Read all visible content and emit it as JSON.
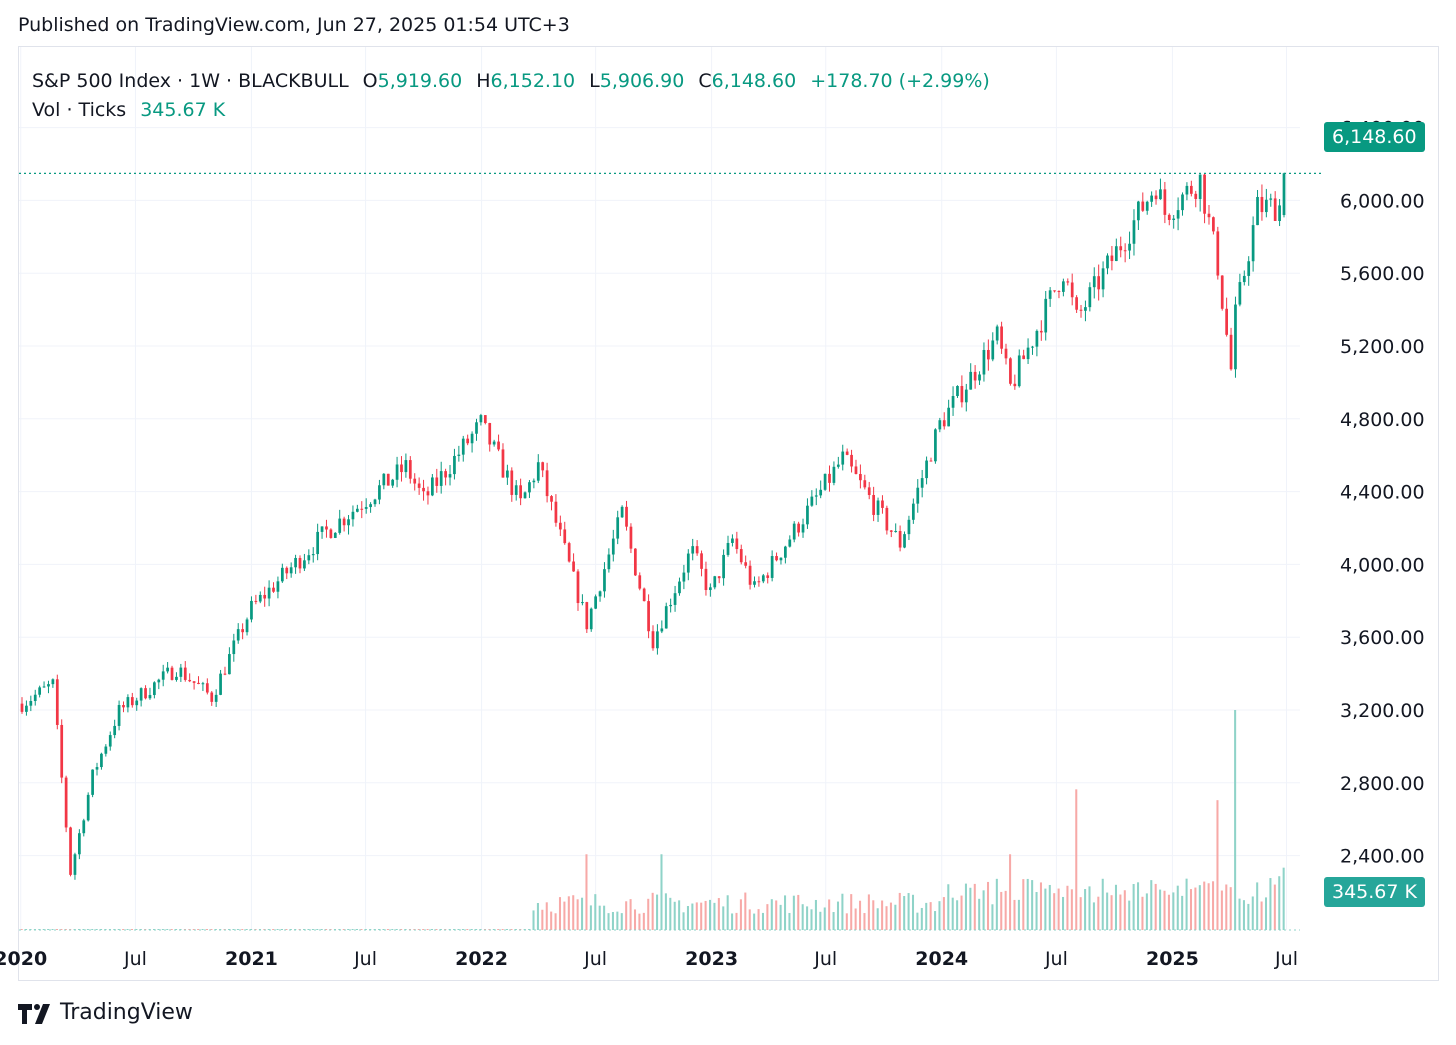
{
  "header": {
    "published": "Published on TradingView.com, Jun 27, 2025 01:54 UTC+3"
  },
  "legend": {
    "symbol": "S&P 500 Index · 1W · BLACKBULL",
    "o_label": "O",
    "o_value": "5,919.60",
    "h_label": "H",
    "h_value": "6,152.10",
    "l_label": "L",
    "l_value": "5,906.90",
    "c_label": "C",
    "c_value": "6,148.60",
    "change": "+178.70 (+2.99%)",
    "vol_label": "Vol · Ticks",
    "vol_value": "345.67 K"
  },
  "price_badge": "6,148.60",
  "volume_badge": "345.67 K",
  "footer": {
    "brand": "TradingView"
  },
  "colors": {
    "up": "#089981",
    "down": "#f23645",
    "vol_up": "#8fd3c8",
    "vol_down": "#f7a9a7",
    "grid": "#f0f3fa",
    "text": "#131722"
  },
  "chart_data": {
    "type": "candlestick",
    "interval": "1W",
    "y_axis": {
      "ticks": [
        2400,
        2800,
        3200,
        3600,
        4000,
        4400,
        4800,
        5200,
        5600,
        6000,
        6400
      ],
      "tick_labels": [
        "2,400.00",
        "2,800.00",
        "3,200.00",
        "3,600.00",
        "4,000.00",
        "4,400.00",
        "4,800.00",
        "5,200.00",
        "5,600.00",
        "6,000.00",
        "6,400.00"
      ],
      "range": [
        1800,
        6600
      ]
    },
    "x_axis": {
      "start": "2020-01-03",
      "end": "2025-06-27",
      "ticks": [
        {
          "date": "2020-01-01",
          "label": "2020",
          "bold": true
        },
        {
          "date": "2020-07-01",
          "label": "Jul",
          "bold": false
        },
        {
          "date": "2021-01-01",
          "label": "2021",
          "bold": true
        },
        {
          "date": "2021-07-01",
          "label": "Jul",
          "bold": false
        },
        {
          "date": "2022-01-01",
          "label": "2022",
          "bold": true
        },
        {
          "date": "2022-07-01",
          "label": "Jul",
          "bold": false
        },
        {
          "date": "2023-01-01",
          "label": "2023",
          "bold": true
        },
        {
          "date": "2023-07-01",
          "label": "Jul",
          "bold": false
        },
        {
          "date": "2024-01-01",
          "label": "2024",
          "bold": true
        },
        {
          "date": "2024-07-01",
          "label": "Jul",
          "bold": false
        },
        {
          "date": "2025-01-01",
          "label": "2025",
          "bold": true
        },
        {
          "date": "2025-07-01",
          "label": "Jul",
          "bold": false
        }
      ]
    },
    "last_close": 6148.6,
    "close_anchors": [
      {
        "date": "2020-01-03",
        "close": 3235
      },
      {
        "date": "2020-02-21",
        "close": 3340
      },
      {
        "date": "2020-03-20",
        "close": 2305
      },
      {
        "date": "2020-04-24",
        "close": 2840
      },
      {
        "date": "2020-06-05",
        "close": 3195
      },
      {
        "date": "2020-09-04",
        "close": 3430
      },
      {
        "date": "2020-10-30",
        "close": 3270
      },
      {
        "date": "2020-12-31",
        "close": 3755
      },
      {
        "date": "2021-04-30",
        "close": 4180
      },
      {
        "date": "2021-09-03",
        "close": 4535
      },
      {
        "date": "2021-10-01",
        "close": 4355
      },
      {
        "date": "2021-12-31",
        "close": 4770
      },
      {
        "date": "2022-03-04",
        "close": 4330
      },
      {
        "date": "2022-04-01",
        "close": 4545
      },
      {
        "date": "2022-06-17",
        "close": 3675
      },
      {
        "date": "2022-08-12",
        "close": 4280
      },
      {
        "date": "2022-09-30",
        "close": 3585
      },
      {
        "date": "2022-11-30",
        "close": 4080
      },
      {
        "date": "2022-12-30",
        "close": 3840
      },
      {
        "date": "2023-02-03",
        "close": 4135
      },
      {
        "date": "2023-03-10",
        "close": 3860
      },
      {
        "date": "2023-07-28",
        "close": 4580
      },
      {
        "date": "2023-10-27",
        "close": 4115
      },
      {
        "date": "2023-12-29",
        "close": 4770
      },
      {
        "date": "2024-03-29",
        "close": 5250
      },
      {
        "date": "2024-04-19",
        "close": 4970
      },
      {
        "date": "2024-07-12",
        "close": 5615
      },
      {
        "date": "2024-08-02",
        "close": 5345
      },
      {
        "date": "2024-12-06",
        "close": 6090
      },
      {
        "date": "2024-12-20",
        "close": 5930
      },
      {
        "date": "2025-02-14",
        "close": 6115
      },
      {
        "date": "2025-03-14",
        "close": 5640
      },
      {
        "date": "2025-04-04",
        "close": 5070
      },
      {
        "date": "2025-04-11",
        "close": 5365
      },
      {
        "date": "2025-05-16",
        "close": 5960
      },
      {
        "date": "2025-06-20",
        "close": 5970
      },
      {
        "date": "2025-06-27",
        "close": 6148.6
      }
    ],
    "volume": {
      "start": "2022-03-25",
      "max_ticks_k": 1220,
      "peaks": [
        {
          "date": "2022-06-17",
          "value_k": 420
        },
        {
          "date": "2022-10-14",
          "value_k": 420
        },
        {
          "date": "2024-04-19",
          "value_k": 420
        },
        {
          "date": "2024-08-02",
          "value_k": 780
        },
        {
          "date": "2025-03-14",
          "value_k": 720
        },
        {
          "date": "2025-04-11",
          "value_k": 1220
        }
      ],
      "last_value": "345.67 K"
    }
  }
}
